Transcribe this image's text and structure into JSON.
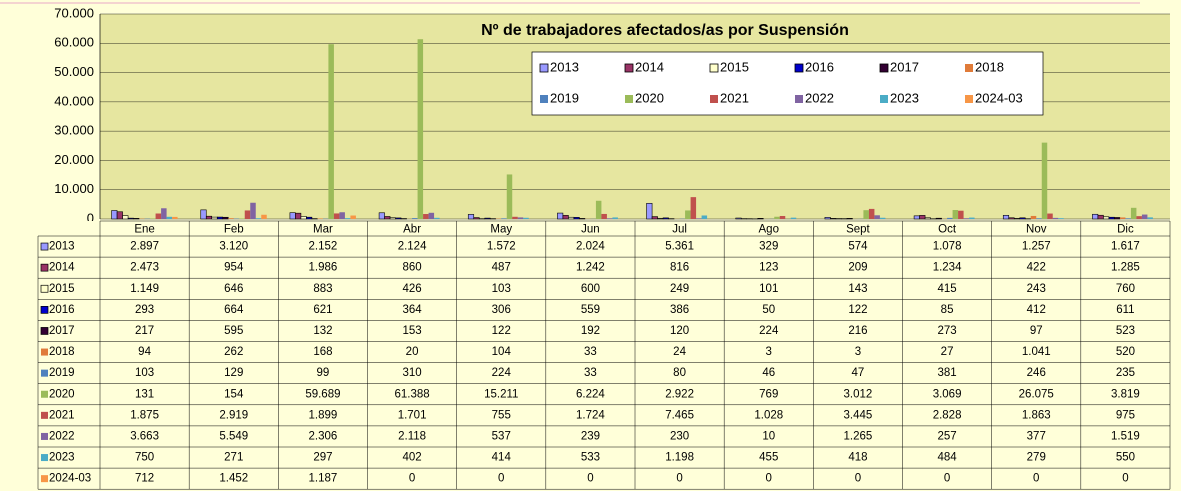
{
  "chart_data": {
    "type": "bar",
    "title": "Nº de trabajadores afectados/as por Suspensión",
    "categories": [
      "Ene",
      "Feb",
      "Mar",
      "Abr",
      "May",
      "Jun",
      "Jul",
      "Ago",
      "Sept",
      "Oct",
      "Nov",
      "Dic"
    ],
    "ylim": [
      0,
      70000
    ],
    "yticks": [
      0,
      {
        "value": 10000,
        "label": "10.000"
      },
      {
        "value": 20000,
        "label": "20.000"
      },
      {
        "value": 30000,
        "label": "30.000"
      },
      {
        "value": 40000,
        "label": "40.000"
      },
      {
        "value": 50000,
        "label": "50.000"
      },
      {
        "value": 60000,
        "label": "60.000"
      },
      {
        "value": 70000,
        "label": "70.000"
      }
    ],
    "grid": true,
    "legend": "top-right",
    "series": [
      {
        "name": "2013",
        "color": "#9999ff",
        "values": [
          2897,
          3120,
          2152,
          2124,
          1572,
          2024,
          5361,
          329,
          574,
          1078,
          1257,
          1617
        ],
        "value_labels": [
          "2.897",
          "3.120",
          "2.152",
          "2.124",
          "1.572",
          "2.024",
          "5.361",
          "329",
          "574",
          "1.078",
          "1.257",
          "1.617"
        ]
      },
      {
        "name": "2014",
        "color": "#993366",
        "values": [
          2473,
          954,
          1986,
          860,
          487,
          1242,
          816,
          123,
          209,
          1234,
          422,
          1285
        ],
        "value_labels": [
          "2.473",
          "954",
          "1.986",
          "860",
          "487",
          "1.242",
          "816",
          "123",
          "209",
          "1.234",
          "422",
          "1.285"
        ]
      },
      {
        "name": "2015",
        "color": "#ffffcc",
        "values": [
          1149,
          646,
          883,
          426,
          103,
          600,
          249,
          101,
          143,
          415,
          243,
          760
        ],
        "value_labels": [
          "1.149",
          "646",
          "883",
          "426",
          "103",
          "600",
          "249",
          "101",
          "143",
          "415",
          "243",
          "760"
        ]
      },
      {
        "name": "2016",
        "color": "#0000cc",
        "values": [
          293,
          664,
          621,
          364,
          306,
          559,
          386,
          50,
          122,
          85,
          412,
          611
        ]
      },
      {
        "name": "2017",
        "color": "#330033",
        "values": [
          217,
          595,
          132,
          153,
          122,
          192,
          120,
          224,
          216,
          273,
          97,
          523
        ]
      },
      {
        "name": "2018",
        "color": "#e07b39",
        "values": [
          94,
          262,
          168,
          20,
          104,
          33,
          24,
          3,
          3,
          27,
          1041,
          520
        ],
        "value_labels": [
          "94",
          "262",
          "168",
          "20",
          "104",
          "33",
          "24",
          "3",
          "3",
          "27",
          "1.041",
          "520"
        ]
      },
      {
        "name": "2019",
        "color": "#4f81bd",
        "values": [
          103,
          129,
          99,
          310,
          224,
          33,
          80,
          46,
          47,
          381,
          246,
          235
        ]
      },
      {
        "name": "2020",
        "color": "#9bbb59",
        "values": [
          131,
          154,
          59689,
          61388,
          15211,
          6224,
          2922,
          769,
          3012,
          3069,
          26075,
          3819
        ],
        "value_labels": [
          "131",
          "154",
          "59.689",
          "61.388",
          "15.211",
          "6.224",
          "2.922",
          "769",
          "3.012",
          "3.069",
          "26.075",
          "3.819"
        ]
      },
      {
        "name": "2021",
        "color": "#c0504d",
        "values": [
          1875,
          2919,
          1899,
          1701,
          755,
          1724,
          7465,
          1028,
          3445,
          2828,
          1863,
          975
        ],
        "value_labels": [
          "1.875",
          "2.919",
          "1.899",
          "1.701",
          "755",
          "1.724",
          "7.465",
          "1.028",
          "3.445",
          "2.828",
          "1.863",
          "975"
        ]
      },
      {
        "name": "2022",
        "color": "#8064a2",
        "values": [
          3663,
          5549,
          2306,
          2118,
          537,
          239,
          230,
          10,
          1265,
          257,
          377,
          1519
        ],
        "value_labels": [
          "3.663",
          "5.549",
          "2.306",
          "2.118",
          "537",
          "239",
          "230",
          "10",
          "1.265",
          "257",
          "377",
          "1.519"
        ]
      },
      {
        "name": "2023",
        "color": "#4bacc6",
        "values": [
          750,
          271,
          297,
          402,
          414,
          533,
          1198,
          455,
          418,
          484,
          279,
          550
        ],
        "value_labels": [
          "750",
          "271",
          "297",
          "402",
          "414",
          "533",
          "1.198",
          "455",
          "418",
          "484",
          "279",
          "550"
        ]
      },
      {
        "name": "2024-03",
        "color": "#f79646",
        "values": [
          712,
          1452,
          1187,
          0,
          0,
          0,
          0,
          0,
          0,
          0,
          0,
          0
        ],
        "value_labels": [
          "712",
          "1.452",
          "1.187",
          "0",
          "0",
          "0",
          "0",
          "0",
          "0",
          "0",
          "0",
          "0"
        ]
      }
    ]
  }
}
